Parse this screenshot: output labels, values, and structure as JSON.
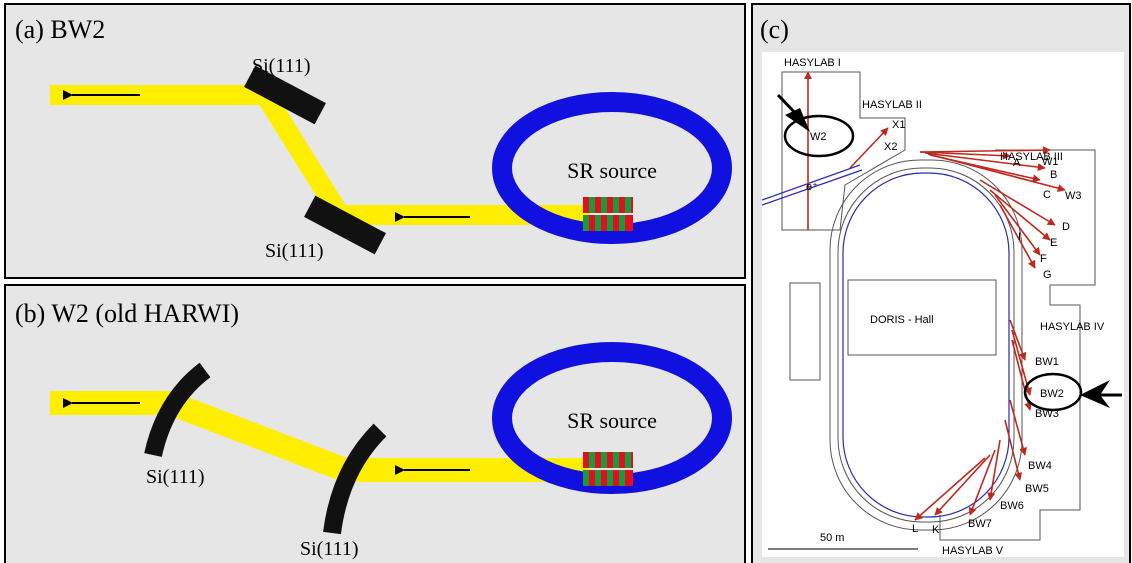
{
  "panel_a": {
    "label": "(a) BW2",
    "crystal_1": "Si(111)",
    "crystal_2": "Si(111)",
    "source": "SR source"
  },
  "panel_b": {
    "label": "(b) W2 (old HARWI)",
    "crystal_1": "Si(111)",
    "crystal_2": "Si(111)",
    "source": "SR source"
  },
  "panel_c": {
    "label": "(c)",
    "map_labels": [
      "HASYLAB I",
      "HASYLAB II",
      "HASYLAB III",
      "HASYLAB IV",
      "HASYLAB V",
      "W2",
      "X1",
      "X2",
      "e⁺",
      "A",
      "W1",
      "B",
      "C",
      "W3",
      "D",
      "E",
      "I",
      "F",
      "G",
      "DORIS - Hall",
      "BW1",
      "BW2",
      "BW3",
      "BW4",
      "BW5",
      "BW6",
      "BW7",
      "K",
      "L",
      "50 m"
    ]
  }
}
